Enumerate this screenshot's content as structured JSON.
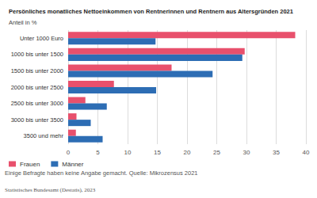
{
  "chart_data": {
    "type": "bar",
    "title": "Persönliches monatliches Nettoeinkommen von Rentnerinnen und Rentnern aus Altersgründen 2021",
    "subtitle": "Anteil in %",
    "orientation": "horizontal",
    "categories": [
      "Unter 1000 Euro",
      "1000 bis unter 1500",
      "1500 bis unter 2000",
      "2000 bis unter 2500",
      "2500 bis unter 3000",
      "3000 bis unter 3500",
      "3500 und mehr"
    ],
    "series": [
      {
        "name": "Frauen",
        "color": "#e8506c",
        "values": [
          38.2,
          29.7,
          17.4,
          7.7,
          2.9,
          1.4,
          1.3
        ]
      },
      {
        "name": "Männer",
        "color": "#2d6db4",
        "values": [
          14.7,
          29.3,
          24.3,
          14.8,
          6.5,
          3.8,
          5.8
        ]
      }
    ],
    "xlim": [
      0,
      40
    ],
    "xticks": [
      0,
      5,
      10,
      15,
      20,
      25,
      30,
      35,
      40
    ],
    "grid": true,
    "legend": "bottom-left",
    "annotations": [
      "Einige Befragte haben keine Angabe gemacht. Quelle: Mikrozensus 2021",
      "Statistisches Bundesamt (Destatis), 2023"
    ]
  }
}
